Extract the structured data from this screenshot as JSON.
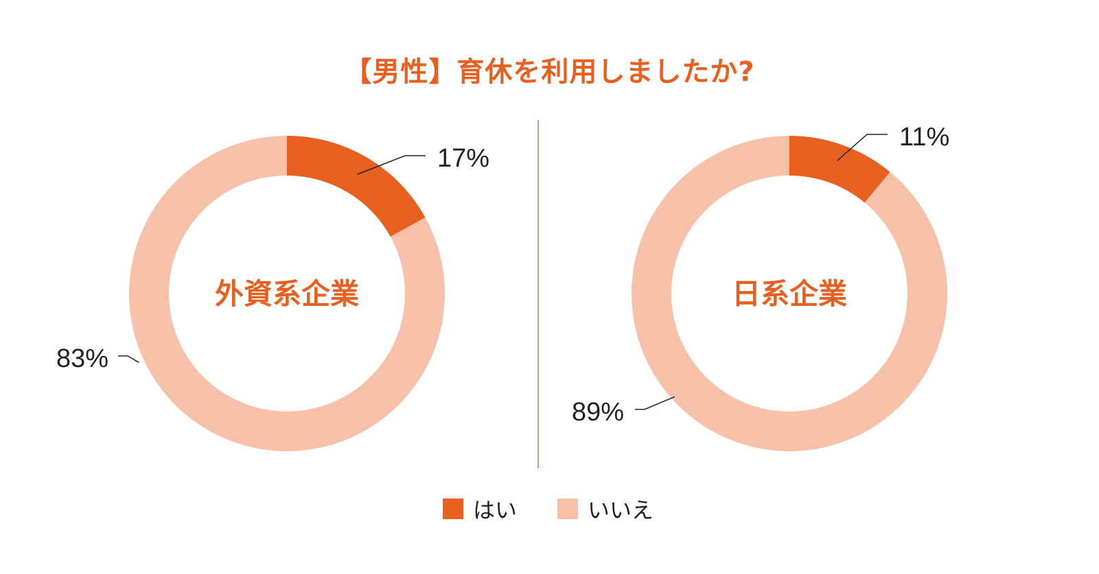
{
  "colors": {
    "accent": "#e8601f",
    "light": "#f6c1a8",
    "divider": "#c0764f",
    "text": "#222222"
  },
  "title": "【男性】育休を利用しましたか?",
  "legend": [
    {
      "label": "はい",
      "color": "#e8601f"
    },
    {
      "label": "いいえ",
      "color": "#f6c1a8"
    }
  ],
  "chart_data": [
    {
      "type": "pie",
      "center_label": "外資系企業",
      "categories": [
        "はい",
        "いいえ"
      ],
      "values": [
        17,
        83
      ],
      "labels": [
        "17%",
        "83%"
      ]
    },
    {
      "type": "pie",
      "center_label": "日系企業",
      "categories": [
        "はい",
        "いいえ"
      ],
      "values": [
        11,
        89
      ],
      "labels": [
        "11%",
        "89%"
      ]
    }
  ]
}
